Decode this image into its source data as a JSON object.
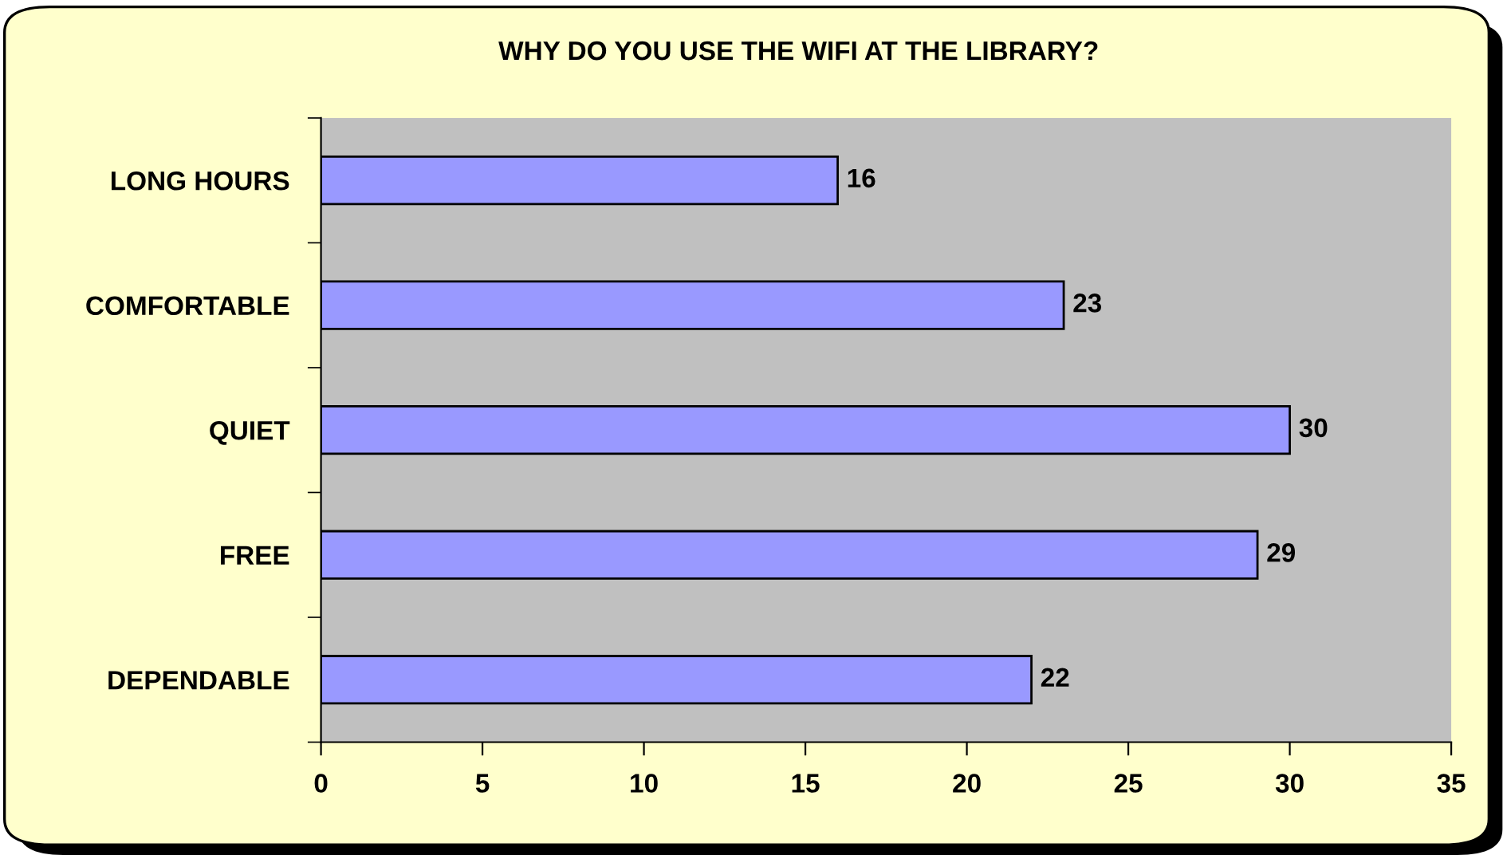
{
  "chart_data": {
    "type": "bar",
    "orientation": "horizontal",
    "title": "WHY DO YOU USE THE WIFI AT THE LIBRARY?",
    "categories": [
      "LONG HOURS",
      "COMFORTABLE",
      "QUIET",
      "FREE",
      "DEPENDABLE"
    ],
    "values": [
      16,
      23,
      30,
      29,
      22
    ],
    "color": "#9999ff",
    "xlim": [
      0,
      35
    ],
    "xticks": [
      0,
      5,
      10,
      15,
      20,
      25,
      30,
      35
    ],
    "grid": false,
    "data_labels": true
  }
}
